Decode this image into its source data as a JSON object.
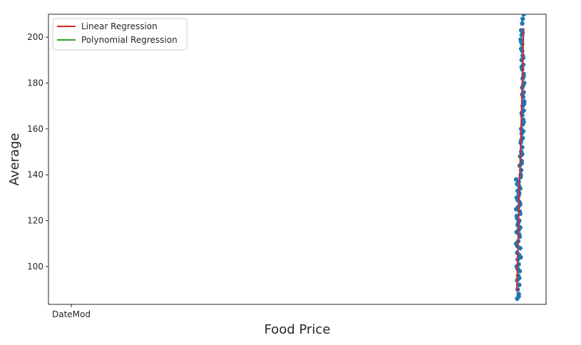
{
  "chart_data": {
    "type": "scatter",
    "xlabel": "Food Price",
    "ylabel": "Average",
    "x_tick_labels": [
      "DateMod"
    ],
    "yticks": [
      100,
      120,
      140,
      160,
      180,
      200
    ],
    "ylim": [
      83.5,
      210
    ],
    "xlim": [
      0,
      100
    ],
    "grid": false,
    "legend": {
      "position": "top-left",
      "entries": [
        "Linear Regression",
        "Polynomial Regression"
      ]
    },
    "colors": {
      "scatter": "#1f77b4",
      "linear": "#d62728",
      "polynomial": "#2ca02c"
    },
    "series": [
      {
        "kind": "scatter",
        "points": [
          [
            94.2,
            86
          ],
          [
            94.5,
            88
          ],
          [
            94.3,
            90
          ],
          [
            94.6,
            92
          ],
          [
            94.2,
            94
          ],
          [
            94.4,
            96
          ],
          [
            94.7,
            98
          ],
          [
            94.1,
            100
          ],
          [
            94.5,
            101
          ],
          [
            94.3,
            103
          ],
          [
            94.6,
            105
          ],
          [
            94.2,
            106
          ],
          [
            94.8,
            108
          ],
          [
            94.0,
            110
          ],
          [
            94.4,
            111
          ],
          [
            94.7,
            113
          ],
          [
            94.1,
            115
          ],
          [
            94.5,
            116
          ],
          [
            94.3,
            118
          ],
          [
            94.6,
            120
          ],
          [
            94.2,
            121
          ],
          [
            94.8,
            123
          ],
          [
            94.0,
            125
          ],
          [
            94.4,
            126
          ],
          [
            94.7,
            128
          ],
          [
            94.1,
            130
          ],
          [
            94.5,
            131
          ],
          [
            94.3,
            133
          ],
          [
            94.6,
            135
          ],
          [
            94.2,
            136
          ],
          [
            94.0,
            138
          ],
          [
            94.5,
            137
          ],
          [
            94.8,
            134
          ],
          [
            94.9,
            140
          ],
          [
            95.0,
            142
          ],
          [
            94.7,
            144
          ],
          [
            95.1,
            146
          ],
          [
            94.8,
            148
          ],
          [
            95.0,
            150
          ],
          [
            95.2,
            152
          ],
          [
            94.9,
            154
          ],
          [
            95.3,
            156
          ],
          [
            95.1,
            158
          ],
          [
            95.0,
            160
          ],
          [
            95.3,
            162
          ],
          [
            95.4,
            164
          ],
          [
            95.2,
            166
          ],
          [
            95.5,
            168
          ],
          [
            95.3,
            170
          ],
          [
            95.6,
            172
          ],
          [
            95.4,
            174
          ],
          [
            95.5,
            176
          ],
          [
            95.2,
            178
          ],
          [
            95.6,
            180
          ],
          [
            95.3,
            182
          ],
          [
            95.5,
            184
          ],
          [
            95.2,
            186
          ],
          [
            95.4,
            188
          ],
          [
            95.1,
            190
          ],
          [
            95.3,
            192
          ],
          [
            95.0,
            195
          ],
          [
            95.2,
            197
          ],
          [
            94.9,
            199
          ],
          [
            95.1,
            201
          ],
          [
            95.0,
            203
          ],
          [
            95.2,
            206
          ],
          [
            95.3,
            208
          ],
          [
            95.5,
            210
          ],
          [
            94.5,
            87
          ],
          [
            94.6,
            95
          ],
          [
            94.3,
            99
          ],
          [
            94.9,
            104
          ],
          [
            94.2,
            109
          ],
          [
            94.6,
            114
          ],
          [
            94.4,
            119
          ],
          [
            94.7,
            124
          ],
          [
            94.3,
            129
          ],
          [
            94.6,
            132
          ],
          [
            94.9,
            139
          ],
          [
            95.1,
            145
          ],
          [
            95.2,
            149
          ],
          [
            95.0,
            155
          ],
          [
            95.4,
            159
          ],
          [
            95.5,
            163
          ],
          [
            95.1,
            167
          ],
          [
            95.6,
            171
          ],
          [
            95.2,
            175
          ],
          [
            95.4,
            179
          ],
          [
            95.5,
            183
          ],
          [
            95.1,
            187
          ],
          [
            95.4,
            191
          ],
          [
            95.2,
            194
          ],
          [
            95.0,
            198
          ],
          [
            95.3,
            202
          ],
          [
            94.8,
            117
          ],
          [
            94.1,
            122
          ],
          [
            94.8,
            127
          ]
        ]
      },
      {
        "kind": "line",
        "name": "Linear Regression",
        "points": [
          [
            94.1,
            89
          ],
          [
            95.5,
            204
          ]
        ]
      }
    ]
  }
}
